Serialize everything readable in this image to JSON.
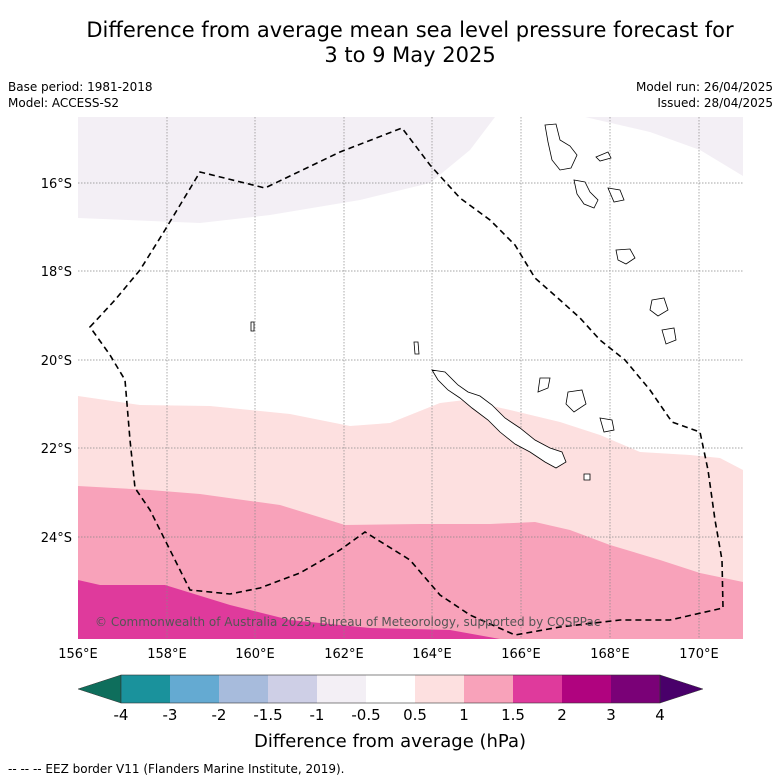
{
  "title_line1": "Difference from average mean sea level pressure forecast for",
  "title_line2": "3 to 9 May 2025",
  "meta": {
    "base_period": "Base period: 1981-2018",
    "model": "Model: ACCESS-S2",
    "model_run": "Model run: 26/04/2025",
    "issued": "Issued: 28/04/2025"
  },
  "axes": {
    "lon_labels": [
      "156°E",
      "158°E",
      "160°E",
      "162°E",
      "164°E",
      "166°E",
      "168°E",
      "170°E"
    ],
    "lat_labels": [
      "16°S",
      "18°S",
      "20°S",
      "22°S",
      "24°S"
    ]
  },
  "copyright": "© Commonwealth of Australia 2025, Bureau of Meteorology, supported by COSPPac",
  "colorbar": {
    "label": "Difference from average (hPa)",
    "ticks": [
      "-4",
      "-3",
      "-2",
      "-1.5",
      "-1",
      "-0.5",
      "0.5",
      "1",
      "1.5",
      "2",
      "3",
      "4"
    ],
    "colors": {
      "below_-4": "#0e6e5c",
      "-4_-3": "#1a929c",
      "-3_-2": "#64aad2",
      "-2_-1.5": "#a7bbdc",
      "-1.5_-1": "#cecfe6",
      "-1_-0.5": "#f3eff5",
      "-0.5_0.5": "#ffffff",
      "0.5_1": "#fde0e0",
      "1_1.5": "#f8a2ba",
      "1.5_2": "#df3a9c",
      "2_3": "#b0037f",
      "3_4": "#7a0177",
      "above_4": "#49006a"
    }
  },
  "footnote": "-- -- -- EEZ border V11 (Flanders Marine Institute, 2019)."
}
